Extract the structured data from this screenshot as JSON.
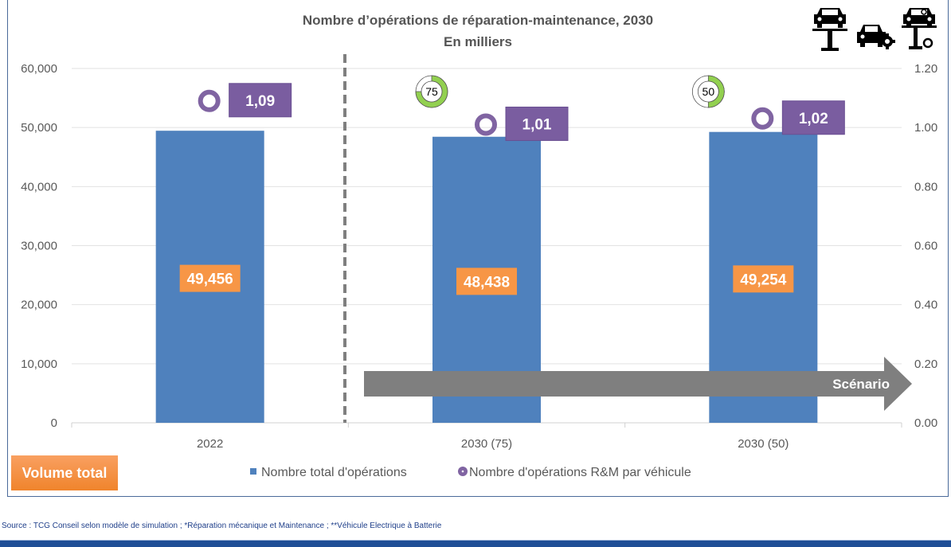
{
  "chart_data": {
    "type": "bar",
    "title": "Nombre d’opérations de réparation-maintenance, 2030",
    "subtitle": "En milliers",
    "categories": [
      "2022",
      "2030 (75)",
      "2030 (50)"
    ],
    "series": [
      {
        "name": "Nombre total d'opérations",
        "type": "bar",
        "axis": "left",
        "color": "#4f81bd",
        "values": [
          49456,
          48438,
          49254
        ],
        "labels": [
          "49,456",
          "48,438",
          "49,254"
        ]
      },
      {
        "name": "Nombre d'opérations R&M par véhicule",
        "type": "scatter",
        "axis": "right",
        "color": "#8064a2",
        "values": [
          1.09,
          1.01,
          1.02
        ],
        "labels": [
          "1,09",
          "1,01",
          "1,02"
        ]
      }
    ],
    "y_left": {
      "ylim": [
        0,
        60000
      ],
      "ticks": [
        "0",
        "10,000",
        "20,000",
        "30,000",
        "40,000",
        "50,000",
        "60,000"
      ]
    },
    "y_right": {
      "ylim": [
        0,
        1.2
      ],
      "ticks": [
        "0.00",
        "0.20",
        "0.40",
        "0.60",
        "0.80",
        "1.00",
        "1.20"
      ]
    },
    "xlabel": "",
    "ylabel": "",
    "grid": true,
    "legend_position": "bottom",
    "annotations": {
      "scenario_arrow": "Scénario",
      "volume_badge": "Volume total",
      "gauges": [
        {
          "category": "2030 (75)",
          "label": "75",
          "percent": 75
        },
        {
          "category": "2030 (50)",
          "label": "50",
          "percent": 50
        }
      ],
      "separator": "dashed line between 2022 and 2030 scenarios"
    }
  },
  "icons": [
    "car-on-lift-icon",
    "car-gear-icon",
    "car-lift-wrench-icon"
  ],
  "footer": {
    "source": "Source : TCG Conseil selon modèle de simulation ; *Réparation mécanique et Maintenance ; **Véhicule Electrique à Batterie"
  }
}
